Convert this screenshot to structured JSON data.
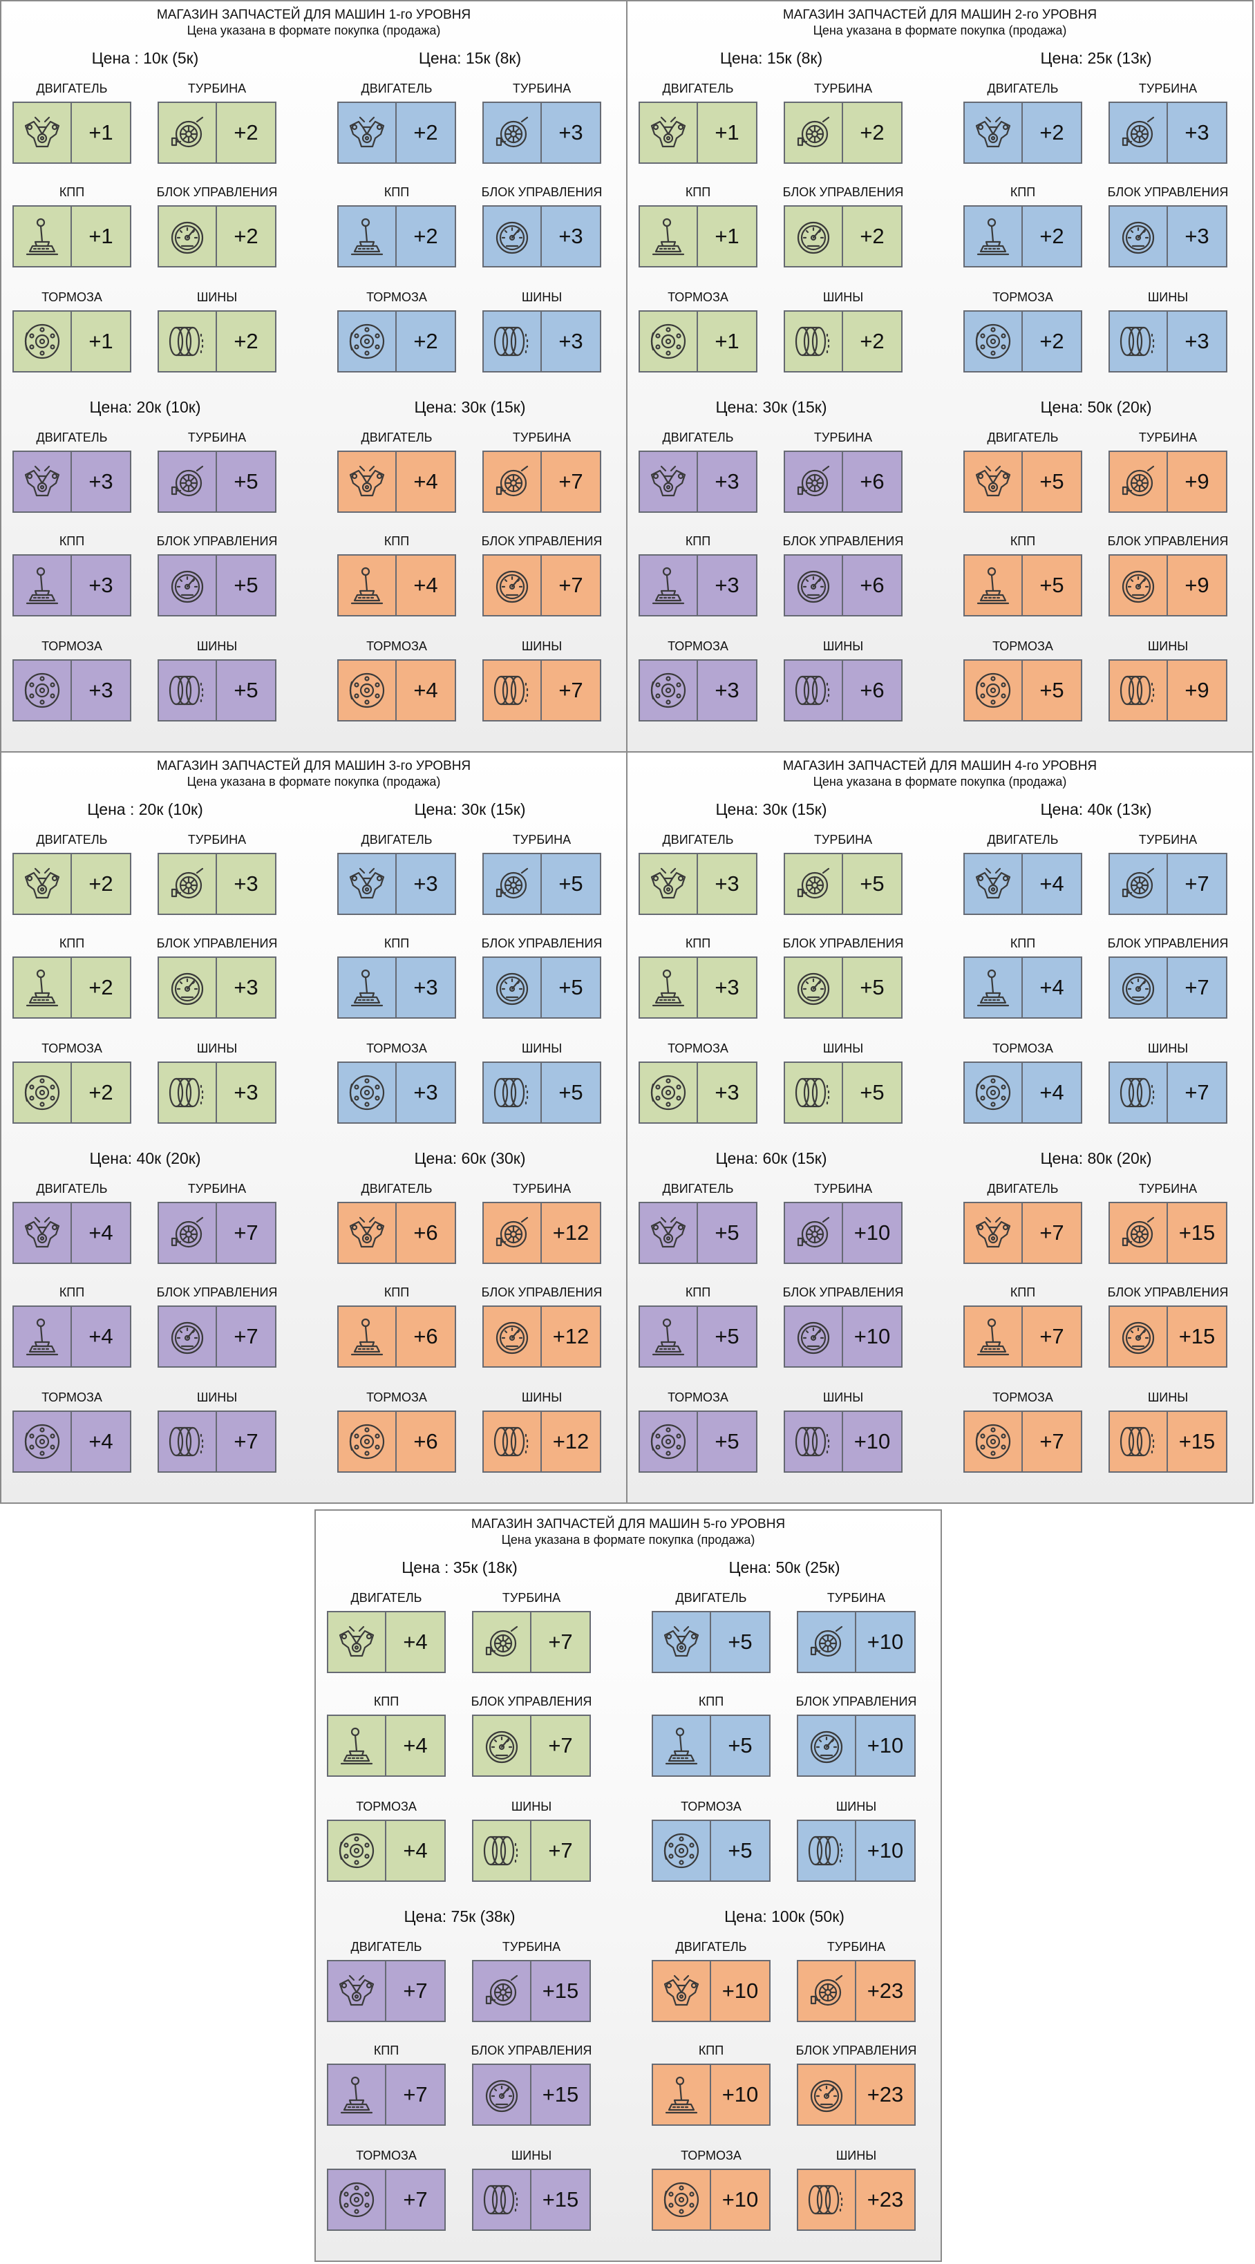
{
  "colors": {
    "green": "#cfdcae",
    "blue": "#a5c3e2",
    "purple": "#b4a6d2",
    "orange": "#f4b284",
    "border": "#666a73"
  },
  "part_icons": {
    "engine": "engine-icon",
    "turbo": "turbo-icon",
    "gearbox": "gear-shift-icon",
    "ecu": "speedometer-icon",
    "brakes": "brake-disc-icon",
    "tires": "tires-icon"
  },
  "part_labels": {
    "engine": "ДВИГАТЕЛЬ",
    "turbo": "ТУРБИНА",
    "gearbox": "КПП",
    "ecu": "БЛОК УПРАВЛЕНИЯ",
    "brakes": "ТОРМОЗА",
    "tires": "ШИНЫ"
  },
  "subtitle": "Цена указана в формате покупка (продажа)",
  "shops": [
    {
      "title": "МАГАЗИН ЗАПЧАСТЕЙ ДЛЯ МАШИН 1-го УРОВНЯ",
      "groups": [
        {
          "price": "Цена : 10к (5к)",
          "color": "green",
          "values": {
            "engine": "+1",
            "turbo": "+2",
            "gearbox": "+1",
            "ecu": "+2",
            "brakes": "+1",
            "tires": "+2"
          }
        },
        {
          "price": "Цена: 15к (8к)",
          "color": "blue",
          "values": {
            "engine": "+2",
            "turbo": "+3",
            "gearbox": "+2",
            "ecu": "+3",
            "brakes": "+2",
            "tires": "+3"
          }
        },
        {
          "price": "Цена: 20к (10к)",
          "color": "purple",
          "values": {
            "engine": "+3",
            "turbo": "+5",
            "gearbox": "+3",
            "ecu": "+5",
            "brakes": "+3",
            "tires": "+5"
          }
        },
        {
          "price": "Цена: 30к (15к)",
          "color": "orange",
          "values": {
            "engine": "+4",
            "turbo": "+7",
            "gearbox": "+4",
            "ecu": "+7",
            "brakes": "+4",
            "tires": "+7"
          }
        }
      ]
    },
    {
      "title": "МАГАЗИН ЗАПЧАСТЕЙ ДЛЯ МАШИН 2-го УРОВНЯ",
      "groups": [
        {
          "price": "Цена: 15к (8к)",
          "color": "green",
          "values": {
            "engine": "+1",
            "turbo": "+2",
            "gearbox": "+1",
            "ecu": "+2",
            "brakes": "+1",
            "tires": "+2"
          }
        },
        {
          "price": "Цена: 25к (13к)",
          "color": "blue",
          "values": {
            "engine": "+2",
            "turbo": "+3",
            "gearbox": "+2",
            "ecu": "+3",
            "brakes": "+2",
            "tires": "+3"
          }
        },
        {
          "price": "Цена: 30к (15к)",
          "color": "purple",
          "values": {
            "engine": "+3",
            "turbo": "+6",
            "gearbox": "+3",
            "ecu": "+6",
            "brakes": "+3",
            "tires": "+6"
          }
        },
        {
          "price": "Цена: 50к (20к)",
          "color": "orange",
          "values": {
            "engine": "+5",
            "turbo": "+9",
            "gearbox": "+5",
            "ecu": "+9",
            "brakes": "+5",
            "tires": "+9"
          }
        }
      ]
    },
    {
      "title": "МАГАЗИН ЗАПЧАСТЕЙ ДЛЯ МАШИН 3-го УРОВНЯ",
      "groups": [
        {
          "price": "Цена : 20к (10к)",
          "color": "green",
          "values": {
            "engine": "+2",
            "turbo": "+3",
            "gearbox": "+2",
            "ecu": "+3",
            "brakes": "+2",
            "tires": "+3"
          }
        },
        {
          "price": "Цена: 30к (15к)",
          "color": "blue",
          "values": {
            "engine": "+3",
            "turbo": "+5",
            "gearbox": "+3",
            "ecu": "+5",
            "brakes": "+3",
            "tires": "+5"
          }
        },
        {
          "price": "Цена: 40к (20к)",
          "color": "purple",
          "values": {
            "engine": "+4",
            "turbo": "+7",
            "gearbox": "+4",
            "ecu": "+7",
            "brakes": "+4",
            "tires": "+7"
          }
        },
        {
          "price": "Цена: 60к (30к)",
          "color": "orange",
          "values": {
            "engine": "+6",
            "turbo": "+12",
            "gearbox": "+6",
            "ecu": "+12",
            "brakes": "+6",
            "tires": "+12"
          }
        }
      ]
    },
    {
      "title": "МАГАЗИН ЗАПЧАСТЕЙ ДЛЯ МАШИН 4-го УРОВНЯ",
      "groups": [
        {
          "price": "Цена: 30к (15к)",
          "color": "green",
          "values": {
            "engine": "+3",
            "turbo": "+5",
            "gearbox": "+3",
            "ecu": "+5",
            "brakes": "+3",
            "tires": "+5"
          }
        },
        {
          "price": "Цена: 40к (13к)",
          "color": "blue",
          "values": {
            "engine": "+4",
            "turbo": "+7",
            "gearbox": "+4",
            "ecu": "+7",
            "brakes": "+4",
            "tires": "+7"
          }
        },
        {
          "price": "Цена: 60к (15к)",
          "color": "purple",
          "values": {
            "engine": "+5",
            "turbo": "+10",
            "gearbox": "+5",
            "ecu": "+10",
            "brakes": "+5",
            "tires": "+10"
          }
        },
        {
          "price": "Цена: 80к (20к)",
          "color": "orange",
          "values": {
            "engine": "+7",
            "turbo": "+15",
            "gearbox": "+7",
            "ecu": "+15",
            "brakes": "+7",
            "tires": "+15"
          }
        }
      ]
    },
    {
      "title": "МАГАЗИН ЗАПЧАСТЕЙ ДЛЯ МАШИН 5-го УРОВНЯ",
      "groups": [
        {
          "price": "Цена : 35к (18к)",
          "color": "green",
          "values": {
            "engine": "+4",
            "turbo": "+7",
            "gearbox": "+4",
            "ecu": "+7",
            "brakes": "+4",
            "tires": "+7"
          }
        },
        {
          "price": "Цена: 50к (25к)",
          "color": "blue",
          "values": {
            "engine": "+5",
            "turbo": "+10",
            "gearbox": "+5",
            "ecu": "+10",
            "brakes": "+5",
            "tires": "+10"
          }
        },
        {
          "price": "Цена: 75к (38к)",
          "color": "purple",
          "values": {
            "engine": "+7",
            "turbo": "+15",
            "gearbox": "+7",
            "ecu": "+15",
            "brakes": "+7",
            "tires": "+15"
          }
        },
        {
          "price": "Цена: 100к (50к)",
          "color": "orange",
          "values": {
            "engine": "+10",
            "turbo": "+23",
            "gearbox": "+10",
            "ecu": "+23",
            "brakes": "+10",
            "tires": "+23"
          }
        }
      ]
    }
  ]
}
